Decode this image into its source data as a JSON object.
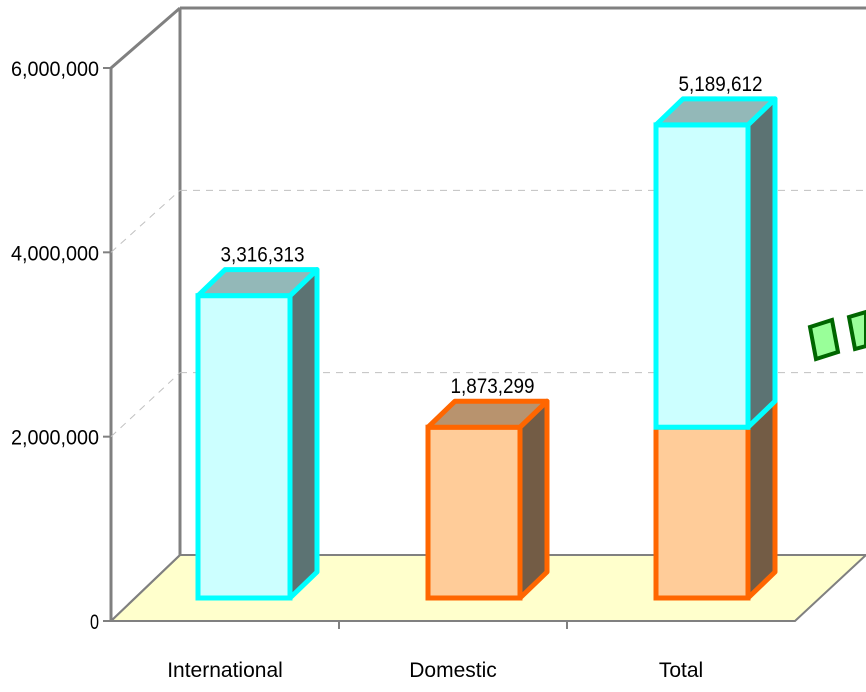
{
  "chart_data": {
    "type": "bar",
    "title": "",
    "xlabel": "",
    "ylabel": "",
    "categories": [
      "International",
      "Domestic",
      "Total"
    ],
    "ylim": [
      0,
      6000000
    ],
    "grid": true,
    "style": "3d-stacked-column",
    "yticks": [
      "0",
      "2,000,000",
      "4,000,000",
      "6,000,000"
    ],
    "series": [
      {
        "key": "domestic",
        "values": [
          0,
          1873299,
          1873299
        ],
        "color": "#ffcc99",
        "edge": "#ff6600"
      },
      {
        "key": "international",
        "values": [
          3316313,
          0,
          3316313
        ],
        "color": "#ccffff",
        "edge": "#00ffff"
      }
    ],
    "data_labels": [
      "3,316,313",
      "1,873,299",
      "5,189,612"
    ],
    "floor_color": "#ffffcc",
    "partial_shape_color": "#33cc33"
  }
}
